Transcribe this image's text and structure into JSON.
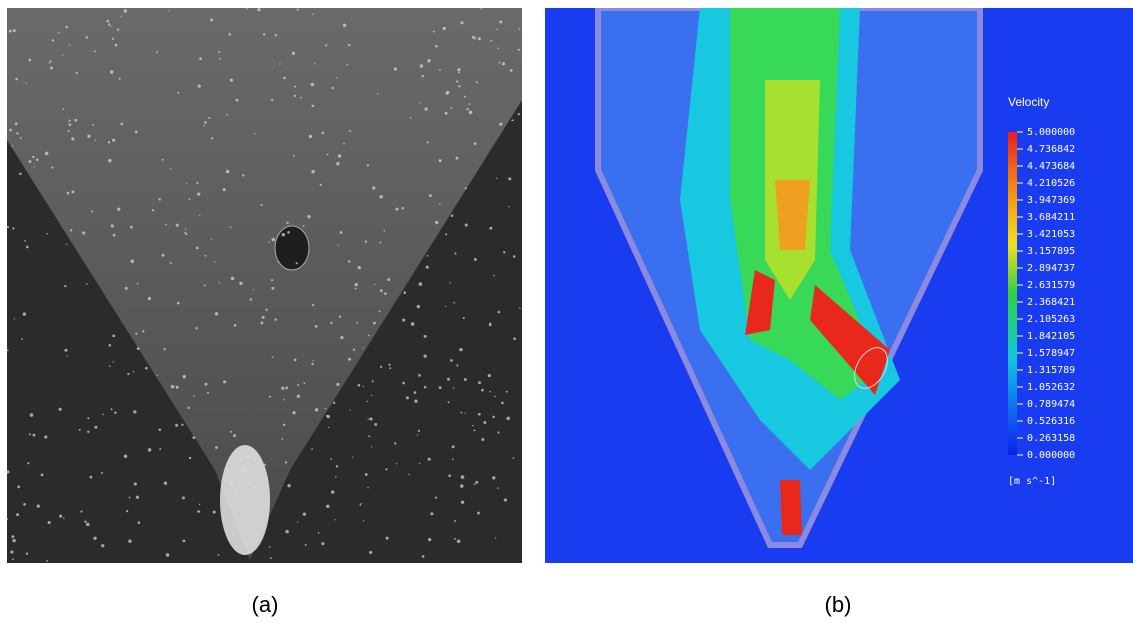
{
  "panels": [
    {
      "caption": "(a)"
    },
    {
      "caption": "(b)",
      "legend": {
        "title": "Velocity",
        "unit": "[m s^-1]",
        "ticks": [
          {
            "value": 5,
            "label": "5.000000"
          },
          {
            "value": 4.736842,
            "label": "4.736842"
          },
          {
            "value": 4.473684,
            "label": "4.473684"
          },
          {
            "value": 4.210526,
            "label": "4.210526"
          },
          {
            "value": 3.947369,
            "label": "3.947369"
          },
          {
            "value": 3.684211,
            "label": "3.684211"
          },
          {
            "value": 3.421053,
            "label": "3.421053"
          },
          {
            "value": 3.157895,
            "label": "3.157895"
          },
          {
            "value": 2.894737,
            "label": "2.894737"
          },
          {
            "value": 2.631579,
            "label": "2.631579"
          },
          {
            "value": 2.368421,
            "label": "2.368421"
          },
          {
            "value": 2.105263,
            "label": "2.105263"
          },
          {
            "value": 1.842105,
            "label": "1.842105"
          },
          {
            "value": 1.578947,
            "label": "1.578947"
          },
          {
            "value": 1.315789,
            "label": "1.315789"
          },
          {
            "value": 1.052632,
            "label": "1.052632"
          },
          {
            "value": 0.789474,
            "label": "0.789474"
          },
          {
            "value": 0.526316,
            "label": "0.526316"
          },
          {
            "value": 0.263158,
            "label": "0.263158"
          },
          {
            "value": 0,
            "label": "0.000000"
          }
        ]
      }
    }
  ]
}
